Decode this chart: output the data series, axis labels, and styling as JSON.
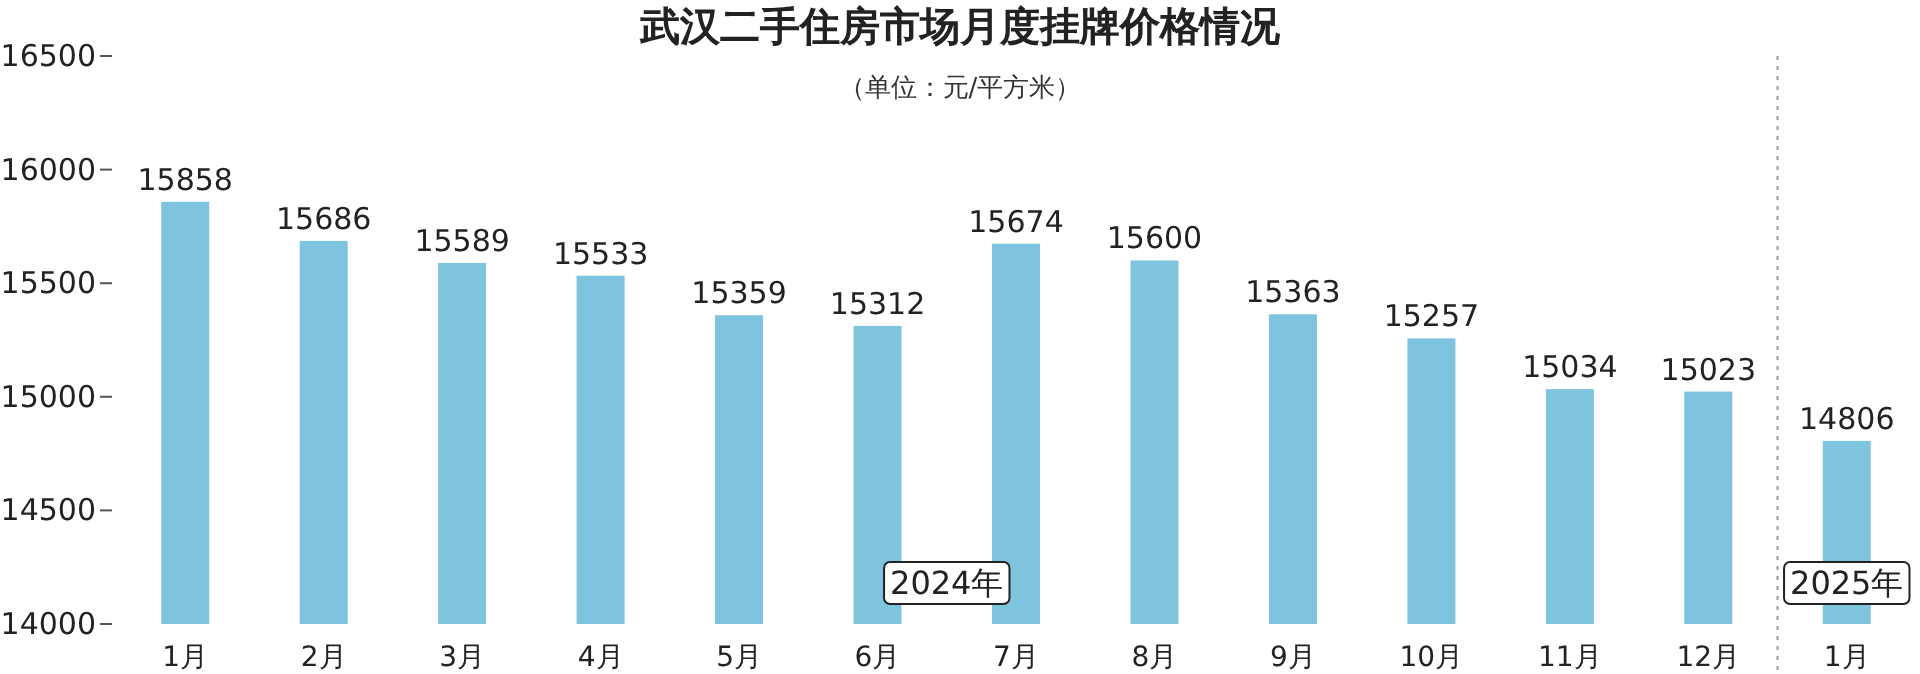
{
  "chart_data": {
    "type": "bar",
    "title": "武汉二手住房市场月度挂牌价格情况",
    "subtitle": "（单位：元/平方米）",
    "categories": [
      "1月",
      "2月",
      "3月",
      "4月",
      "5月",
      "6月",
      "7月",
      "8月",
      "9月",
      "10月",
      "11月",
      "12月",
      "1月"
    ],
    "values": [
      15858,
      15686,
      15589,
      15533,
      15359,
      15312,
      15674,
      15600,
      15363,
      15257,
      15034,
      15023,
      14806
    ],
    "color": "#7fc4df",
    "ylim": [
      14000,
      16500
    ],
    "yticks": [
      14000,
      14500,
      15000,
      15500,
      16000,
      16500
    ],
    "data_labels": true,
    "annotations": [
      "2024年",
      "2025年"
    ]
  }
}
